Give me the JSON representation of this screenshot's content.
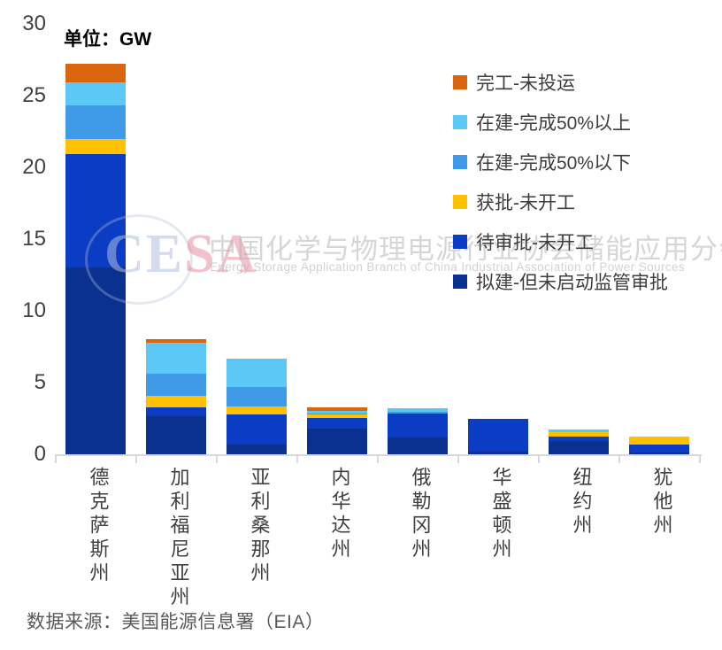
{
  "title": "单位：GW",
  "source": "数据来源：美国能源信息署（EIA）",
  "watermark": {
    "logo_ce": "CE",
    "logo_sa": "SA",
    "cn": "中国化学与物理电源行业协会储能应用分会",
    "en": "Energy Storage Application Branch of China Industrial Association of Power Sources"
  },
  "chart_data": {
    "type": "bar",
    "stacked": true,
    "unit": "GW",
    "title": "单位：GW",
    "xlabel": "",
    "ylabel": "GW",
    "ylim": [
      0,
      30
    ],
    "yticks": [
      0,
      5,
      10,
      15,
      20,
      25,
      30
    ],
    "grid": false,
    "legend_position": "upper right",
    "categories": [
      "德克萨斯州",
      "加利福尼亚州",
      "亚利桑那州",
      "内华达州",
      "俄勒冈州",
      "华盛顿州",
      "纽约州",
      "犹他州"
    ],
    "series": [
      {
        "name": "拟建-但未启动监管审批",
        "color": "#0a3190",
        "values": [
          13.0,
          2.65,
          0.7,
          1.8,
          1.2,
          0.2,
          0.95,
          0.1
        ]
      },
      {
        "name": "待审批-未开工",
        "color": "#0b3dc4",
        "values": [
          7.9,
          0.65,
          2.05,
          0.75,
          1.65,
          2.25,
          0.3,
          0.55
        ]
      },
      {
        "name": "获批-未开工",
        "color": "#ffc000",
        "values": [
          1.1,
          0.75,
          0.6,
          0.2,
          0.0,
          0.0,
          0.3,
          0.6
        ]
      },
      {
        "name": "在建-完成50%以下",
        "color": "#3f9be8",
        "values": [
          2.3,
          1.55,
          1.35,
          0.1,
          0.1,
          0.0,
          0.0,
          0.0
        ]
      },
      {
        "name": "在建-完成50%以上",
        "color": "#5bc8f5",
        "values": [
          1.6,
          2.2,
          2.0,
          0.15,
          0.25,
          0.0,
          0.2,
          0.0
        ]
      },
      {
        "name": "完工-未投运",
        "color": "#d9660e",
        "values": [
          1.3,
          0.2,
          0.0,
          0.3,
          0.0,
          0.0,
          0.0,
          0.0
        ]
      }
    ],
    "legend_order_top_to_bottom": [
      "完工-未投运",
      "在建-完成50%以上",
      "在建-完成50%以下",
      "获批-未开工",
      "待审批-未开工",
      "拟建-但未启动监管审批"
    ]
  }
}
